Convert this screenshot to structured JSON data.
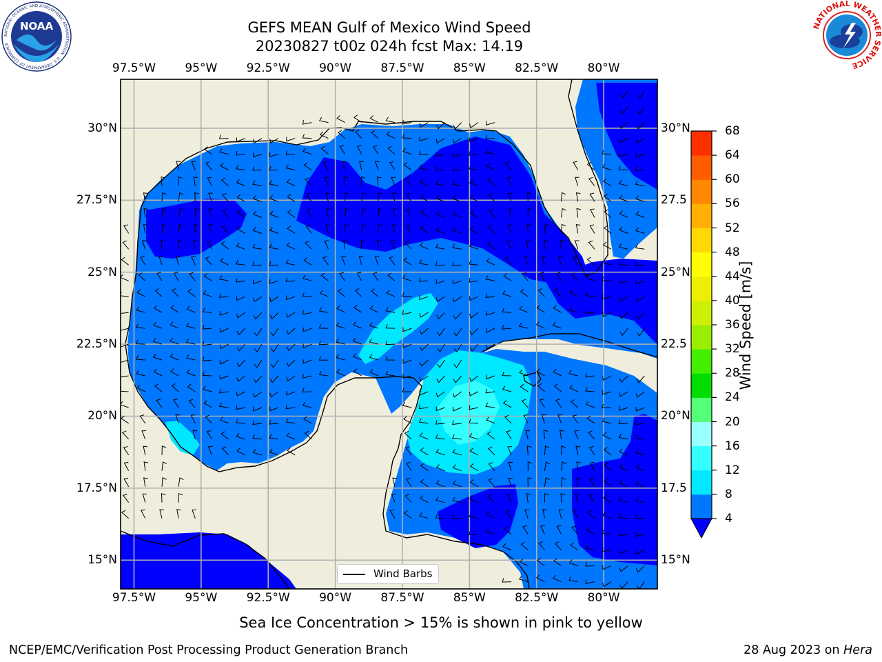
{
  "title": {
    "line1": "GEFS MEAN Gulf of Mexico Wind Speed",
    "line2": "20230827 t00z 024h fcst   Max: 14.19"
  },
  "axes": {
    "lon_labels": [
      "97.5°W",
      "95°W",
      "92.5°W",
      "90°W",
      "87.5°W",
      "85°W",
      "82.5°W",
      "80°W"
    ],
    "lat_labels": [
      "30°N",
      "27.5°N",
      "25°N",
      "22.5°N",
      "20°N",
      "17.5°N",
      "15°N"
    ],
    "lat_labels_right": [
      "30°N",
      "27.5",
      "25°N",
      "22.5",
      "20°N",
      "17.5",
      "15°N"
    ],
    "lon_values": [
      -97.5,
      -95,
      -92.5,
      -90,
      -87.5,
      -85,
      -82.5,
      -80
    ],
    "lat_values": [
      30,
      27.5,
      25,
      22.5,
      20,
      17.5,
      15
    ],
    "lon_range": [
      -98,
      -78
    ],
    "lat_range": [
      14,
      31.7
    ]
  },
  "colorbar": {
    "title": "Wind Speed [m/s]",
    "levels": [
      "4",
      "8",
      "12",
      "16",
      "20",
      "24",
      "28",
      "32",
      "36",
      "40",
      "44",
      "48",
      "52",
      "56",
      "60",
      "64",
      "68"
    ],
    "colors": [
      "#0077ff",
      "#00e8ff",
      "#33ffff",
      "#99ffff",
      "#55ff77",
      "#00dd00",
      "#44ee00",
      "#99ee00",
      "#ccf000",
      "#eeee00",
      "#ffff00",
      "#ffd800",
      "#ffb000",
      "#ff8800",
      "#ff5c00",
      "#ff3000",
      "#ff0000"
    ],
    "under_color": "#0000ff"
  },
  "legend": {
    "label": "Wind Barbs"
  },
  "note": "Sea Ice Concentration > 15% is shown in pink to yellow",
  "credit": {
    "left": "NCEP/EMC/Verification Post Processing Product Generation Branch",
    "right_prefix": "28 Aug 2023 on ",
    "right_host": "Hera"
  },
  "logos": {
    "noaa_text": "NOAA",
    "noaa_ring": "NATIONAL OCEANIC AND ATMOSPHERIC ADMINISTRATION · U.S. DEPARTMENT OF COMMERCE",
    "nws_ring": "NATIONAL WEATHER SERVICE"
  },
  "style": {
    "land": "#efeedd",
    "ocean_low": "#0000ff",
    "ocean_mid": "#0077ff",
    "ocean_high": "#00e8ff",
    "ocean_peak": "#33ffff",
    "grid": "#b0b0b0"
  }
}
